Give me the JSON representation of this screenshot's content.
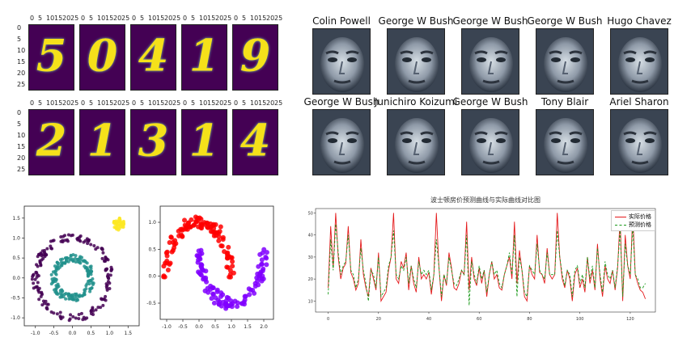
{
  "digits": {
    "glyphs": [
      "5",
      "0",
      "4",
      "1",
      "9",
      "2",
      "1",
      "3",
      "1",
      "4"
    ],
    "xticks": [
      "0",
      "5",
      "10",
      "15",
      "20",
      "25"
    ],
    "yticks": [
      "0",
      "5",
      "10",
      "15",
      "20",
      "25"
    ],
    "colors": {
      "background": "#440154",
      "stroke": "#f5e11a"
    }
  },
  "faces": {
    "titles": [
      "Colin Powell",
      "George W Bush",
      "George W Bush",
      "George W Bush",
      "Hugo Chavez",
      "George W Bush",
      "Junichiro Koizumi",
      "George W Bush",
      "Tony Blair",
      "Ariel Sharon"
    ],
    "colormap": "bone"
  },
  "chart_data": [
    {
      "type": "scatter",
      "xlim": [
        -1.3,
        1.8
      ],
      "ylim": [
        -1.2,
        1.8
      ],
      "xticks": [
        "-1.0",
        "-0.5",
        "0.0",
        "0.5",
        "1.0",
        "1.5"
      ],
      "yticks": [
        "-1.0",
        "-0.5",
        "0.0",
        "0.5",
        "1.0",
        "1.5"
      ],
      "grid": false,
      "series": [
        {
          "color": "#440154",
          "shape": "ring",
          "center": [
            0,
            0
          ],
          "radius": 1.0
        },
        {
          "color": "#21918c",
          "shape": "ring",
          "center": [
            0,
            0
          ],
          "radius": 0.5
        },
        {
          "color": "#fde725",
          "shape": "blob",
          "center": [
            1.25,
            1.35
          ],
          "radius": 0.15
        }
      ]
    },
    {
      "type": "scatter",
      "xlim": [
        -1.2,
        2.3
      ],
      "ylim": [
        -0.8,
        1.3
      ],
      "xticks": [
        "-1.0",
        "-0.5",
        "0.0",
        "0.5",
        "1.0",
        "1.5",
        "2.0"
      ],
      "yticks": [
        "-0.5",
        "0.0",
        "0.5",
        "1.0"
      ],
      "grid": false,
      "series": [
        {
          "color": "#ff0000",
          "shape": "upper-moon"
        },
        {
          "color": "#8000ff",
          "shape": "lower-moon"
        }
      ]
    },
    {
      "type": "line",
      "title": "波士顿房价预测曲线与实际曲线对比图",
      "xlim": [
        -5,
        130
      ],
      "ylim": [
        5,
        52
      ],
      "xticks": [
        "0",
        "20",
        "40",
        "60",
        "80",
        "100",
        "120"
      ],
      "yticks": [
        "10",
        "20",
        "30",
        "40",
        "50"
      ],
      "legend": "top-right",
      "series": [
        {
          "name": "实际价格",
          "color": "#e41a1c",
          "dash": false,
          "values": [
            16,
            44,
            25,
            50,
            30,
            20,
            25,
            27,
            44,
            23,
            20,
            15,
            18,
            38,
            22,
            16,
            12,
            25,
            20,
            15,
            32,
            10,
            12,
            14,
            24,
            30,
            50,
            20,
            18,
            28,
            25,
            32,
            15,
            26,
            18,
            14,
            30,
            20,
            22,
            20,
            23,
            13,
            22,
            50,
            26,
            10,
            22,
            17,
            32,
            25,
            16,
            15,
            18,
            24,
            22,
            46,
            15,
            30,
            20,
            17,
            25,
            18,
            24,
            12,
            22,
            28,
            20,
            22,
            16,
            15,
            22,
            26,
            30,
            20,
            46,
            18,
            33,
            24,
            12,
            10,
            26,
            22,
            20,
            40,
            23,
            22,
            18,
            34,
            22,
            20,
            22,
            50,
            30,
            20,
            16,
            24,
            20,
            10,
            22,
            25,
            16,
            20,
            14,
            30,
            18,
            24,
            15,
            36,
            20,
            12,
            26,
            20,
            18,
            24,
            15,
            25,
            48,
            10,
            40,
            26,
            20,
            50,
            22,
            18,
            15,
            14,
            11
          ]
        },
        {
          "name": "预测价格",
          "color": "#1a9a1a",
          "dash": true,
          "values": [
            13,
            38,
            24,
            45,
            32,
            22,
            26,
            28,
            40,
            24,
            22,
            16,
            20,
            34,
            24,
            18,
            10,
            24,
            22,
            16,
            30,
            12,
            14,
            16,
            26,
            30,
            42,
            22,
            20,
            26,
            24,
            30,
            18,
            26,
            20,
            16,
            28,
            22,
            24,
            22,
            24,
            15,
            22,
            38,
            26,
            12,
            22,
            18,
            30,
            24,
            18,
            17,
            20,
            24,
            22,
            40,
            8,
            28,
            22,
            18,
            26,
            20,
            24,
            14,
            22,
            28,
            22,
            24,
            18,
            16,
            22,
            26,
            32,
            22,
            40,
            12,
            30,
            24,
            14,
            12,
            26,
            24,
            22,
            36,
            24,
            22,
            20,
            32,
            22,
            22,
            22,
            42,
            30,
            22,
            17,
            24,
            22,
            12,
            24,
            26,
            18,
            22,
            16,
            30,
            20,
            26,
            16,
            34,
            22,
            14,
            28,
            22,
            20,
            24,
            16,
            26,
            42,
            12,
            36,
            26,
            22,
            44,
            22,
            20,
            16,
            16,
            18
          ]
        }
      ]
    }
  ]
}
